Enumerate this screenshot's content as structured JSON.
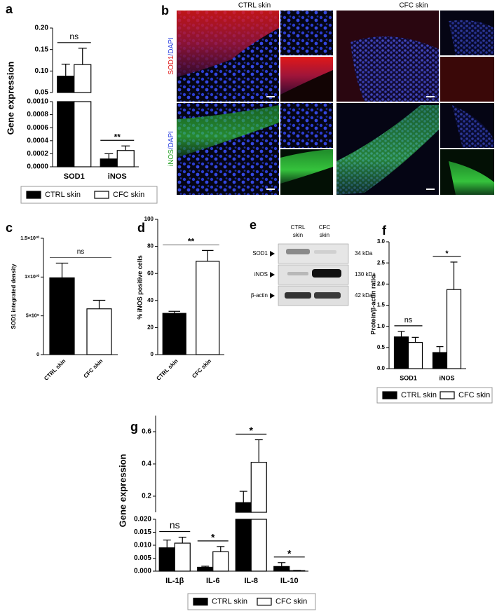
{
  "panel_labels": [
    "a",
    "b",
    "c",
    "d",
    "e",
    "f",
    "g"
  ],
  "microscopy": {
    "columns": [
      "CTRL skin",
      "CFC skin"
    ],
    "rows": [
      {
        "marker": "SOD1",
        "counterstain": "/DAPI"
      },
      {
        "marker": "iNOS",
        "counterstain": "/DAPI"
      }
    ]
  },
  "western_blot": {
    "lanes": [
      [
        "CTRL",
        "skin"
      ],
      [
        "CFC",
        "skin"
      ]
    ],
    "rows": [
      {
        "protein": "SOD1",
        "size": "34 kDa"
      },
      {
        "protein": "iNOS",
        "size": "130 kDa"
      },
      {
        "protein": "β-actin",
        "size": "42 kDa"
      }
    ]
  },
  "chart_data": [
    {
      "type": "bar",
      "ylabel": "Gene expression",
      "categories": [
        "SOD1",
        "iNOS"
      ],
      "series": [
        {
          "name": "CTRL skin",
          "color": "#000000",
          "values": [
            0.088,
            0.00012
          ],
          "errors": [
            0.028,
            8e-05
          ]
        },
        {
          "name": "CFC skin",
          "color": "#ffffff",
          "values": [
            0.115,
            0.00025
          ],
          "errors": [
            0.038,
            7e-05
          ]
        }
      ],
      "yaxes": [
        {
          "ylim": [
            0,
            0.001
          ],
          "yticks": [
            {
              "value": 0,
              "label": "0.0000"
            },
            0.0002,
            0.0004,
            0.0006,
            0.0008,
            {
              "value": 0.001,
              "label": "0.0010"
            }
          ]
        },
        {
          "ylim": [
            0.05,
            0.2
          ],
          "yticks": [
            0.05,
            {
              "value": 0.1,
              "label": "0.10"
            },
            0.15,
            {
              "value": 0.2,
              "label": "0.20"
            }
          ]
        }
      ],
      "annotations": [
        {
          "text": "ns",
          "category": 0
        },
        {
          "text": "**",
          "category": 1
        }
      ],
      "legend": "bottom"
    },
    {
      "type": "bar",
      "ylabel": "SOD1 integrated density",
      "categories": [
        "CTRL skin",
        "CFC skin"
      ],
      "values": [
        9900000000,
        5900000000
      ],
      "errors": [
        1900000000,
        1100000000
      ],
      "colors": [
        "#000000",
        "#ffffff"
      ],
      "ylim": [
        0,
        15000000000
      ],
      "yticks": [
        0,
        {
          "value": 5000000000,
          "label": "5×10⁹"
        },
        {
          "value": 10000000000,
          "label": "1×10¹⁰"
        },
        {
          "value": 15000000000,
          "label": "1.5×10¹⁰"
        }
      ],
      "annotations": [
        {
          "text": "ns"
        }
      ]
    },
    {
      "type": "bar",
      "ylabel": "% iNOS positive  cells",
      "categories": [
        "CTRL skin",
        "CFC skin"
      ],
      "values": [
        30.5,
        69
      ],
      "errors": [
        1.5,
        8
      ],
      "colors": [
        "#000000",
        "#ffffff"
      ],
      "ylim": [
        0,
        100
      ],
      "yticks": [
        0,
        20,
        40,
        60,
        80,
        100
      ],
      "annotations": [
        {
          "text": "**"
        }
      ]
    },
    {
      "type": "bar",
      "ylabel": "Protein/β-actin ratio",
      "categories": [
        "SOD1",
        "iNOS"
      ],
      "series": [
        {
          "name": "CTRL skin",
          "color": "#000000",
          "values": [
            0.75,
            0.38
          ],
          "errors": [
            0.13,
            0.14
          ]
        },
        {
          "name": "CFC skin",
          "color": "#ffffff",
          "values": [
            0.62,
            1.87
          ],
          "errors": [
            0.12,
            0.65
          ]
        }
      ],
      "ylim": [
        0,
        3
      ],
      "yticks": [
        {
          "value": 0,
          "label": "0.0"
        },
        0.5,
        {
          "value": 1,
          "label": "1.0"
        },
        1.5,
        {
          "value": 2,
          "label": "2.0"
        },
        2.5,
        {
          "value": 3,
          "label": "3.0"
        }
      ],
      "annotations": [
        {
          "text": "ns",
          "category": 0
        },
        {
          "text": "*",
          "category": 1
        }
      ],
      "legend": "bottom"
    },
    {
      "type": "bar",
      "ylabel": "Gene expression",
      "categories": [
        "IL-1β",
        "IL-6",
        "IL-8",
        "IL-10"
      ],
      "series": [
        {
          "name": "CTRL skin",
          "color": "#000000",
          "values": [
            0.009,
            0.0015,
            0.16,
            0.0018
          ],
          "errors": [
            0.003,
            0.0004,
            0.07,
            0.0015
          ]
        },
        {
          "name": "CFC skin",
          "color": "#ffffff",
          "values": [
            0.0108,
            0.0075,
            0.41,
            0.0002
          ],
          "errors": [
            0.0023,
            0.002,
            0.14,
            0.0001
          ]
        }
      ],
      "yaxes": [
        {
          "ylim": [
            0,
            0.02
          ],
          "yticks": [
            {
              "value": 0,
              "label": "0.000"
            },
            0.005,
            {
              "value": 0.01,
              "label": "0.010"
            },
            0.015,
            {
              "value": 0.02,
              "label": "0.020"
            }
          ]
        },
        {
          "ylim": [
            0.1,
            0.7
          ],
          "yticks": [
            0.2,
            0.4,
            0.6
          ]
        }
      ],
      "annotations": [
        {
          "text": "ns",
          "category": 0
        },
        {
          "text": "*",
          "category": 1
        },
        {
          "text": "*",
          "category": 2
        },
        {
          "text": "*",
          "category": 3
        }
      ],
      "legend": "bottom"
    }
  ]
}
